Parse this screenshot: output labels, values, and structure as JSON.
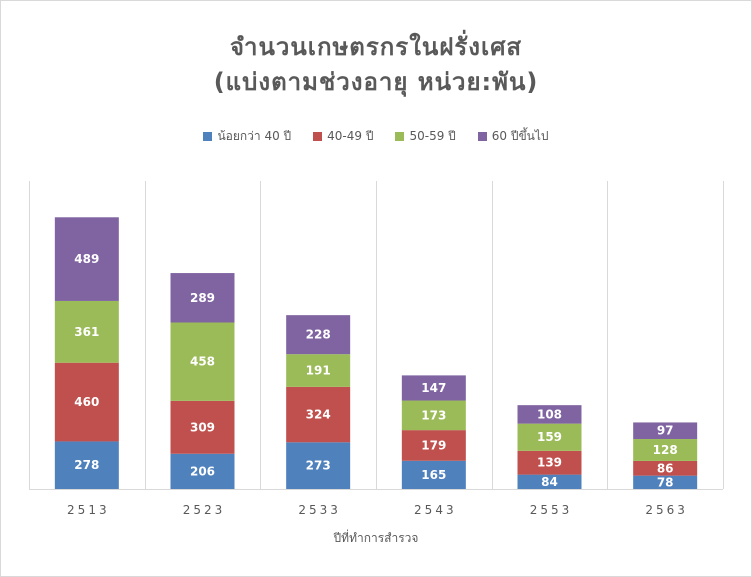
{
  "chart_data": {
    "type": "bar",
    "stacked": true,
    "title": "จำนวนเกษตรกรในฝรั่งเศส",
    "subtitle": "(แบ่งตามช่วงอายุ  หน่วย:พัน)",
    "xlabel": "ปีที่ทำการสำรวจ",
    "ylabel": "",
    "categories": [
      "2513",
      "2523",
      "2533",
      "2543",
      "2553",
      "2563"
    ],
    "series": [
      {
        "name": "น้อยกว่า 40 ปี",
        "color": "#4f81bd",
        "values": [
          278,
          206,
          273,
          165,
          84,
          78
        ]
      },
      {
        "name": "40-49 ปี",
        "color": "#c0504d",
        "values": [
          460,
          309,
          324,
          179,
          139,
          86
        ]
      },
      {
        "name": "50-59 ปี",
        "color": "#9bbb59",
        "values": [
          361,
          458,
          191,
          173,
          159,
          128
        ]
      },
      {
        "name": "60 ปีขึ้นไป",
        "color": "#8064a2",
        "values": [
          489,
          289,
          228,
          147,
          108,
          97
        ]
      }
    ],
    "ylim": [
      0,
      1800
    ],
    "grid": "vertical-category-separators",
    "legend": "top"
  }
}
